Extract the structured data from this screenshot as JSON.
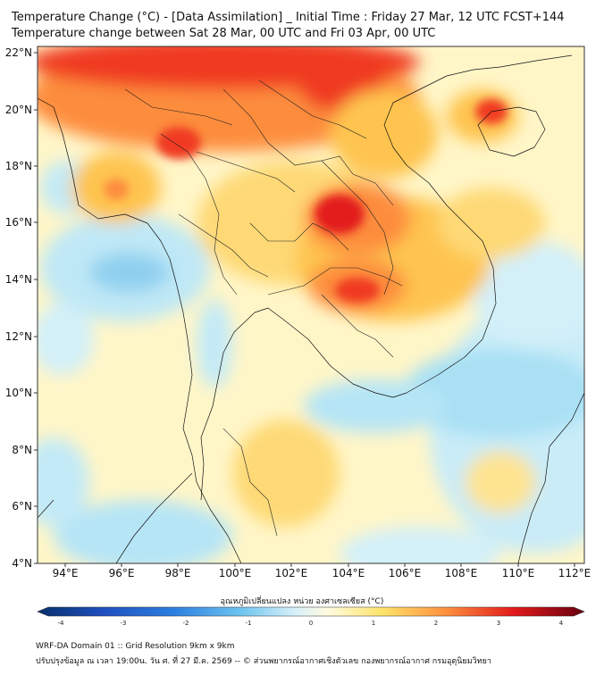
{
  "title_line1": "Temperature Change (°C) - [Data Assimilation] _ Initial Time : Friday 27 Mar, 12 UTC FCST+144",
  "title_line2": "Temperature change between Sat 28 Mar, 00 UTC and Fri 03 Apr, 00 UTC",
  "lat_labels": [
    "22°N",
    "20°N",
    "18°N",
    "16°N",
    "14°N",
    "12°N",
    "10°N",
    "8°N",
    "6°N",
    "4°N"
  ],
  "lon_labels": [
    "94°E",
    "96°E",
    "98°E",
    "100°E",
    "102°E",
    "104°E",
    "106°E",
    "108°E",
    "110°E",
    "112°E"
  ],
  "colorbar": {
    "label": "อุณหภูมิเปลี่ยนแปลง หน่วย องศาเซลเซียส (°C)",
    "ticks": [
      "-4",
      "-3",
      "-2",
      "-1",
      "0",
      "1",
      "2",
      "3",
      "4"
    ]
  },
  "footer_line1": "WRF-DA Domain 01 :: Grid Resolution 9km x 9km",
  "footer_line2": "ปรับปรุงข้อมูล ณ เวลา 19:00น. วัน ศ. ที่ 27 มี.ค. 2569 -- © ส่วนพยากรณ์อากาศเชิงตัวเลข กองพยากรณ์อากาศ กรมอุตุนิยมวิทยา",
  "colors": {
    "deep_red": "#e31a1c",
    "red": "#f03b20",
    "orange": "#fd8d3c",
    "yellow": "#fee391",
    "pale_yellow": "#ffffcc",
    "light_cyan": "#c7ecf7",
    "cyan": "#8fd3ef",
    "blue": "#4aa8e0",
    "dark_blue": "#08306b",
    "dark_red": "#67000d"
  }
}
